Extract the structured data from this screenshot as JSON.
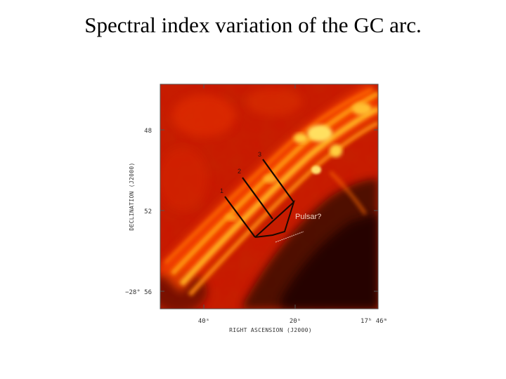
{
  "slide": {
    "title": "Spectral index variation of the GC arc."
  },
  "figure": {
    "image_description_icon": "radio-map-image",
    "colormap": [
      "#2a0500",
      "#b01000",
      "#ff3a00",
      "#ffd200"
    ],
    "frame_color": "#555555",
    "y_axis": {
      "label": "DECLINATION (J2000)",
      "ticks": [
        "48",
        "52",
        "−28° 56"
      ]
    },
    "x_axis": {
      "label": "RIGHT ASCENSION (J2000)",
      "ticks": [
        "40ˢ",
        "20ˢ",
        "17ʰ 46ᵐ"
      ]
    },
    "regions": [
      {
        "label": "1"
      },
      {
        "label": "2"
      },
      {
        "label": "3"
      }
    ],
    "pulsar_label": "Pulsar?"
  }
}
